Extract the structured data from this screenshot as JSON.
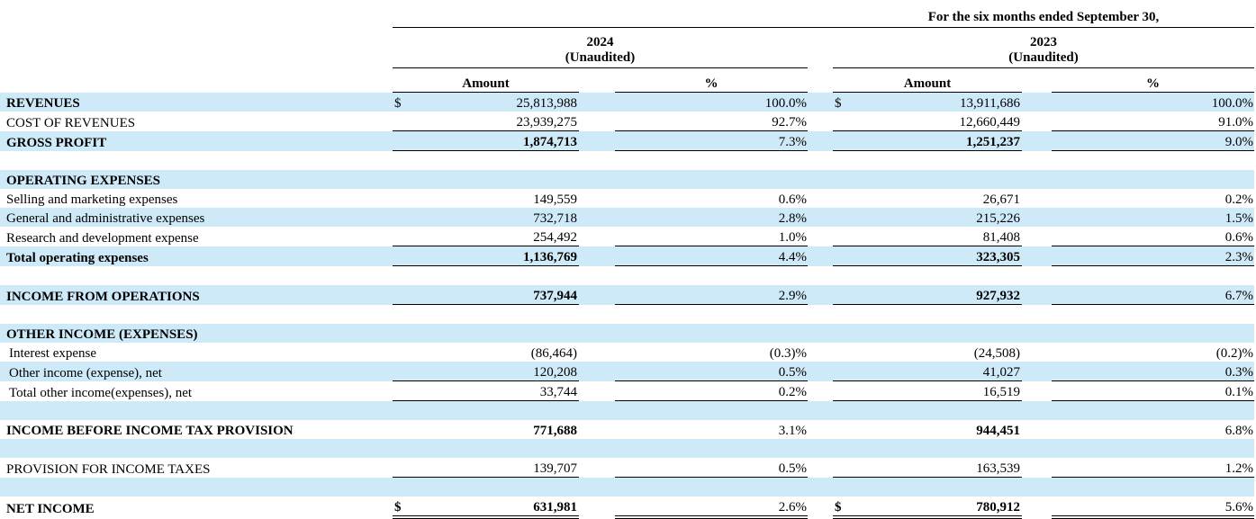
{
  "header": {
    "period_title": "For the six months ended September 30,",
    "col_groups": [
      {
        "year": "2024",
        "note": "(Unaudited)"
      },
      {
        "year": "2023",
        "note": "(Unaudited)"
      }
    ],
    "amount_label": "Amount",
    "percent_label": "%"
  },
  "colors": {
    "stripe_blue": "#cee9f8",
    "text": "#000000",
    "rule": "#000000"
  },
  "rows": [
    {
      "type": "data",
      "label": "REVENUES",
      "label_bold": true,
      "stripe": true,
      "cur24": "$",
      "amt24": "25,813,988",
      "pct24": "100.0%",
      "cur23": "$",
      "amt23": "13,911,686",
      "pct23": "100.0%"
    },
    {
      "type": "data",
      "label": "COST OF REVENUES",
      "border": true,
      "amt24": "23,939,275",
      "pct24": "92.7%",
      "amt23": "12,660,449",
      "pct23": "91.0%"
    },
    {
      "type": "data",
      "label": "GROSS PROFIT",
      "label_bold": true,
      "amt_bold": true,
      "stripe": true,
      "border": true,
      "amt24": "1,874,713",
      "pct24": "7.3%",
      "amt23": "1,251,237",
      "pct23": "9.0%"
    },
    {
      "type": "spacer"
    },
    {
      "type": "data",
      "label": "OPERATING EXPENSES",
      "label_bold": true,
      "stripe": true
    },
    {
      "type": "data",
      "label": "Selling and marketing expenses",
      "amt24": "149,559",
      "pct24": "0.6%",
      "amt23": "26,671",
      "pct23": "0.2%"
    },
    {
      "type": "data",
      "label": "General and administrative expenses",
      "stripe": true,
      "amt24": "732,718",
      "pct24": "2.8%",
      "amt23": "215,226",
      "pct23": "1.5%"
    },
    {
      "type": "data",
      "label": "Research and development expense",
      "border": true,
      "amt24": "254,492",
      "pct24": "1.0%",
      "amt23": "81,408",
      "pct23": "0.6%"
    },
    {
      "type": "data",
      "label": "Total operating expenses",
      "label_bold": true,
      "amt_bold": true,
      "stripe": true,
      "border": true,
      "amt24": "1,136,769",
      "pct24": "4.4%",
      "amt23": "323,305",
      "pct23": "2.3%"
    },
    {
      "type": "spacer"
    },
    {
      "type": "data",
      "label": "INCOME FROM OPERATIONS",
      "label_bold": true,
      "amt_bold": true,
      "stripe": true,
      "border": true,
      "amt24": "737,944",
      "pct24": "2.9%",
      "amt23": "927,932",
      "pct23": "6.7%"
    },
    {
      "type": "spacer"
    },
    {
      "type": "data",
      "label": "OTHER INCOME (EXPENSES)",
      "label_bold": true,
      "stripe": true
    },
    {
      "type": "data",
      "label": "Interest expense",
      "indent": true,
      "amt24": "(86,464)",
      "pct24": "(0.3)%",
      "amt23": "(24,508)",
      "pct23": "(0.2)%"
    },
    {
      "type": "data",
      "label": "Other income (expense), net",
      "indent": true,
      "stripe": true,
      "border": true,
      "amt24": "120,208",
      "pct24": "0.5%",
      "amt23": "41,027",
      "pct23": "0.3%"
    },
    {
      "type": "data",
      "label": "Total other income(expenses), net",
      "indent": true,
      "border": true,
      "amt24": "33,744",
      "pct24": "0.2%",
      "amt23": "16,519",
      "pct23": "0.1%"
    },
    {
      "type": "spacer",
      "stripe": true
    },
    {
      "type": "data",
      "label": "INCOME BEFORE INCOME TAX PROVISION",
      "label_bold": true,
      "amt_bold": true,
      "amt24": "771,688",
      "pct24": "3.1%",
      "amt23": "944,451",
      "pct23": "6.8%"
    },
    {
      "type": "spacer",
      "stripe": true
    },
    {
      "type": "data",
      "label": "PROVISION FOR INCOME TAXES",
      "border": true,
      "amt24": "139,707",
      "pct24": "0.5%",
      "amt23": "163,539",
      "pct23": "1.2%"
    },
    {
      "type": "spacer",
      "stripe": true
    },
    {
      "type": "data",
      "label": "NET INCOME",
      "label_bold": true,
      "amt_bold": true,
      "double": true,
      "cur24": "$",
      "amt24": "631,981",
      "pct24": "2.6%",
      "cur23": "$",
      "amt23": "780,912",
      "pct23": "5.6%"
    }
  ]
}
